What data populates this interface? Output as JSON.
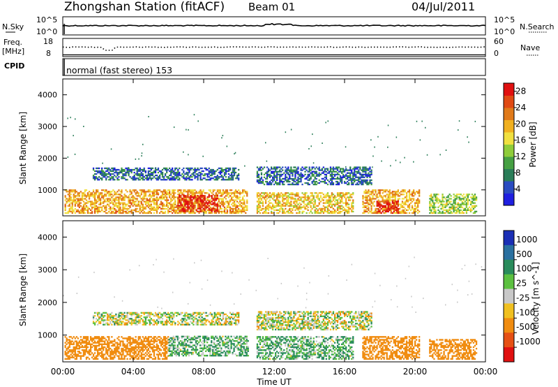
{
  "header": {
    "station": "Zhongshan Station (fitACF)",
    "beam": "Beam 01",
    "date": "04/Jul/2011"
  },
  "strip_nsky": {
    "label": "N.Sky",
    "ticks_left": [
      "10^5",
      "10^0"
    ],
    "ticks_right": [
      "10^5",
      "10^0"
    ],
    "right_label": "N.Search"
  },
  "strip_freq": {
    "label": "Freq.",
    "unit": "[MHz]",
    "ticks_left": [
      "18",
      "8"
    ],
    "ticks_right": [
      "60",
      "0"
    ],
    "right_label": "Nave"
  },
  "strip_cpid": {
    "label": "CPID",
    "text": "normal (fast stereo) 153"
  },
  "chart_data": [
    {
      "type": "heatmap",
      "quantity": "power",
      "ylabel": "Slant Range [km]",
      "xlabel": "",
      "x_ticks": [
        "00:00",
        "04:00",
        "08:00",
        "12:00",
        "16:00",
        "20:00",
        "00:00"
      ],
      "xlim_hours": [
        0,
        24
      ],
      "y_ticks": [
        1000,
        2000,
        3000,
        4000
      ],
      "ylim": [
        180,
        4500
      ],
      "colorbar": {
        "label": "Power [dB]",
        "ticks": [
          4,
          8,
          12,
          16,
          20,
          24,
          28
        ],
        "range": [
          0,
          30
        ],
        "colors": [
          "#1f1fe0",
          "#2a4cc0",
          "#2a7d58",
          "#46a043",
          "#8fcc3a",
          "#f0e040",
          "#f0b020",
          "#e07a1a",
          "#e04a14",
          "#e01010"
        ]
      },
      "echo_bands": [
        {
          "t_start": 0.1,
          "t_end": 10.5,
          "r_low": 250,
          "r_high": 1000,
          "level": 20
        },
        {
          "t_start": 6.5,
          "t_end": 8.8,
          "r_low": 300,
          "r_high": 800,
          "level": 28
        },
        {
          "t_start": 1.7,
          "t_end": 10.0,
          "r_low": 1300,
          "r_high": 1700,
          "level": 6
        },
        {
          "t_start": 11.0,
          "t_end": 17.5,
          "r_low": 1150,
          "r_high": 1700,
          "level": 6
        },
        {
          "t_start": 11.0,
          "t_end": 16.5,
          "r_low": 250,
          "r_high": 900,
          "level": 18
        },
        {
          "t_start": 17.0,
          "t_end": 20.2,
          "r_low": 250,
          "r_high": 1000,
          "level": 20
        },
        {
          "t_start": 17.8,
          "t_end": 19.0,
          "r_low": 250,
          "r_high": 650,
          "level": 28
        },
        {
          "t_start": 20.8,
          "t_end": 23.5,
          "r_low": 250,
          "r_high": 850,
          "level": 14
        }
      ]
    },
    {
      "type": "heatmap",
      "quantity": "velocity",
      "ylabel": "Slant Range [km]",
      "xlabel": "Time UT",
      "x_ticks": [
        "00:00",
        "04:00",
        "08:00",
        "12:00",
        "16:00",
        "20:00",
        "00:00"
      ],
      "xlim_hours": [
        0,
        24
      ],
      "y_ticks": [
        1000,
        2000,
        3000,
        4000
      ],
      "ylim": [
        180,
        4500
      ],
      "colorbar": {
        "label": "Velocity [m s^-1]",
        "ticks": [
          "1000",
          "500",
          "100",
          "25",
          "-25",
          "-100",
          "-500",
          "-1000"
        ],
        "colors": [
          "#1b2fb5",
          "#2a70a0",
          "#2a8c5c",
          "#5cc040",
          "#c8c8c8",
          "#f0c020",
          "#f08c10",
          "#e65014",
          "#e01010"
        ]
      },
      "echo_bands": [
        {
          "t_start": 0.1,
          "t_end": 6.0,
          "r_low": 250,
          "r_high": 950,
          "level": -300
        },
        {
          "t_start": 6.0,
          "t_end": 10.5,
          "r_low": 350,
          "r_high": 950,
          "level": 100
        },
        {
          "t_start": 1.7,
          "t_end": 10.0,
          "r_low": 1300,
          "r_high": 1700,
          "level": 0
        },
        {
          "t_start": 11.0,
          "t_end": 16.5,
          "r_low": 250,
          "r_high": 950,
          "level": 100
        },
        {
          "t_start": 11.0,
          "t_end": 17.5,
          "r_low": 1150,
          "r_high": 1700,
          "level": 0
        },
        {
          "t_start": 17.0,
          "t_end": 20.2,
          "r_low": 250,
          "r_high": 950,
          "level": -300
        },
        {
          "t_start": 20.8,
          "t_end": 23.5,
          "r_low": 250,
          "r_high": 850,
          "level": -300
        }
      ]
    }
  ]
}
